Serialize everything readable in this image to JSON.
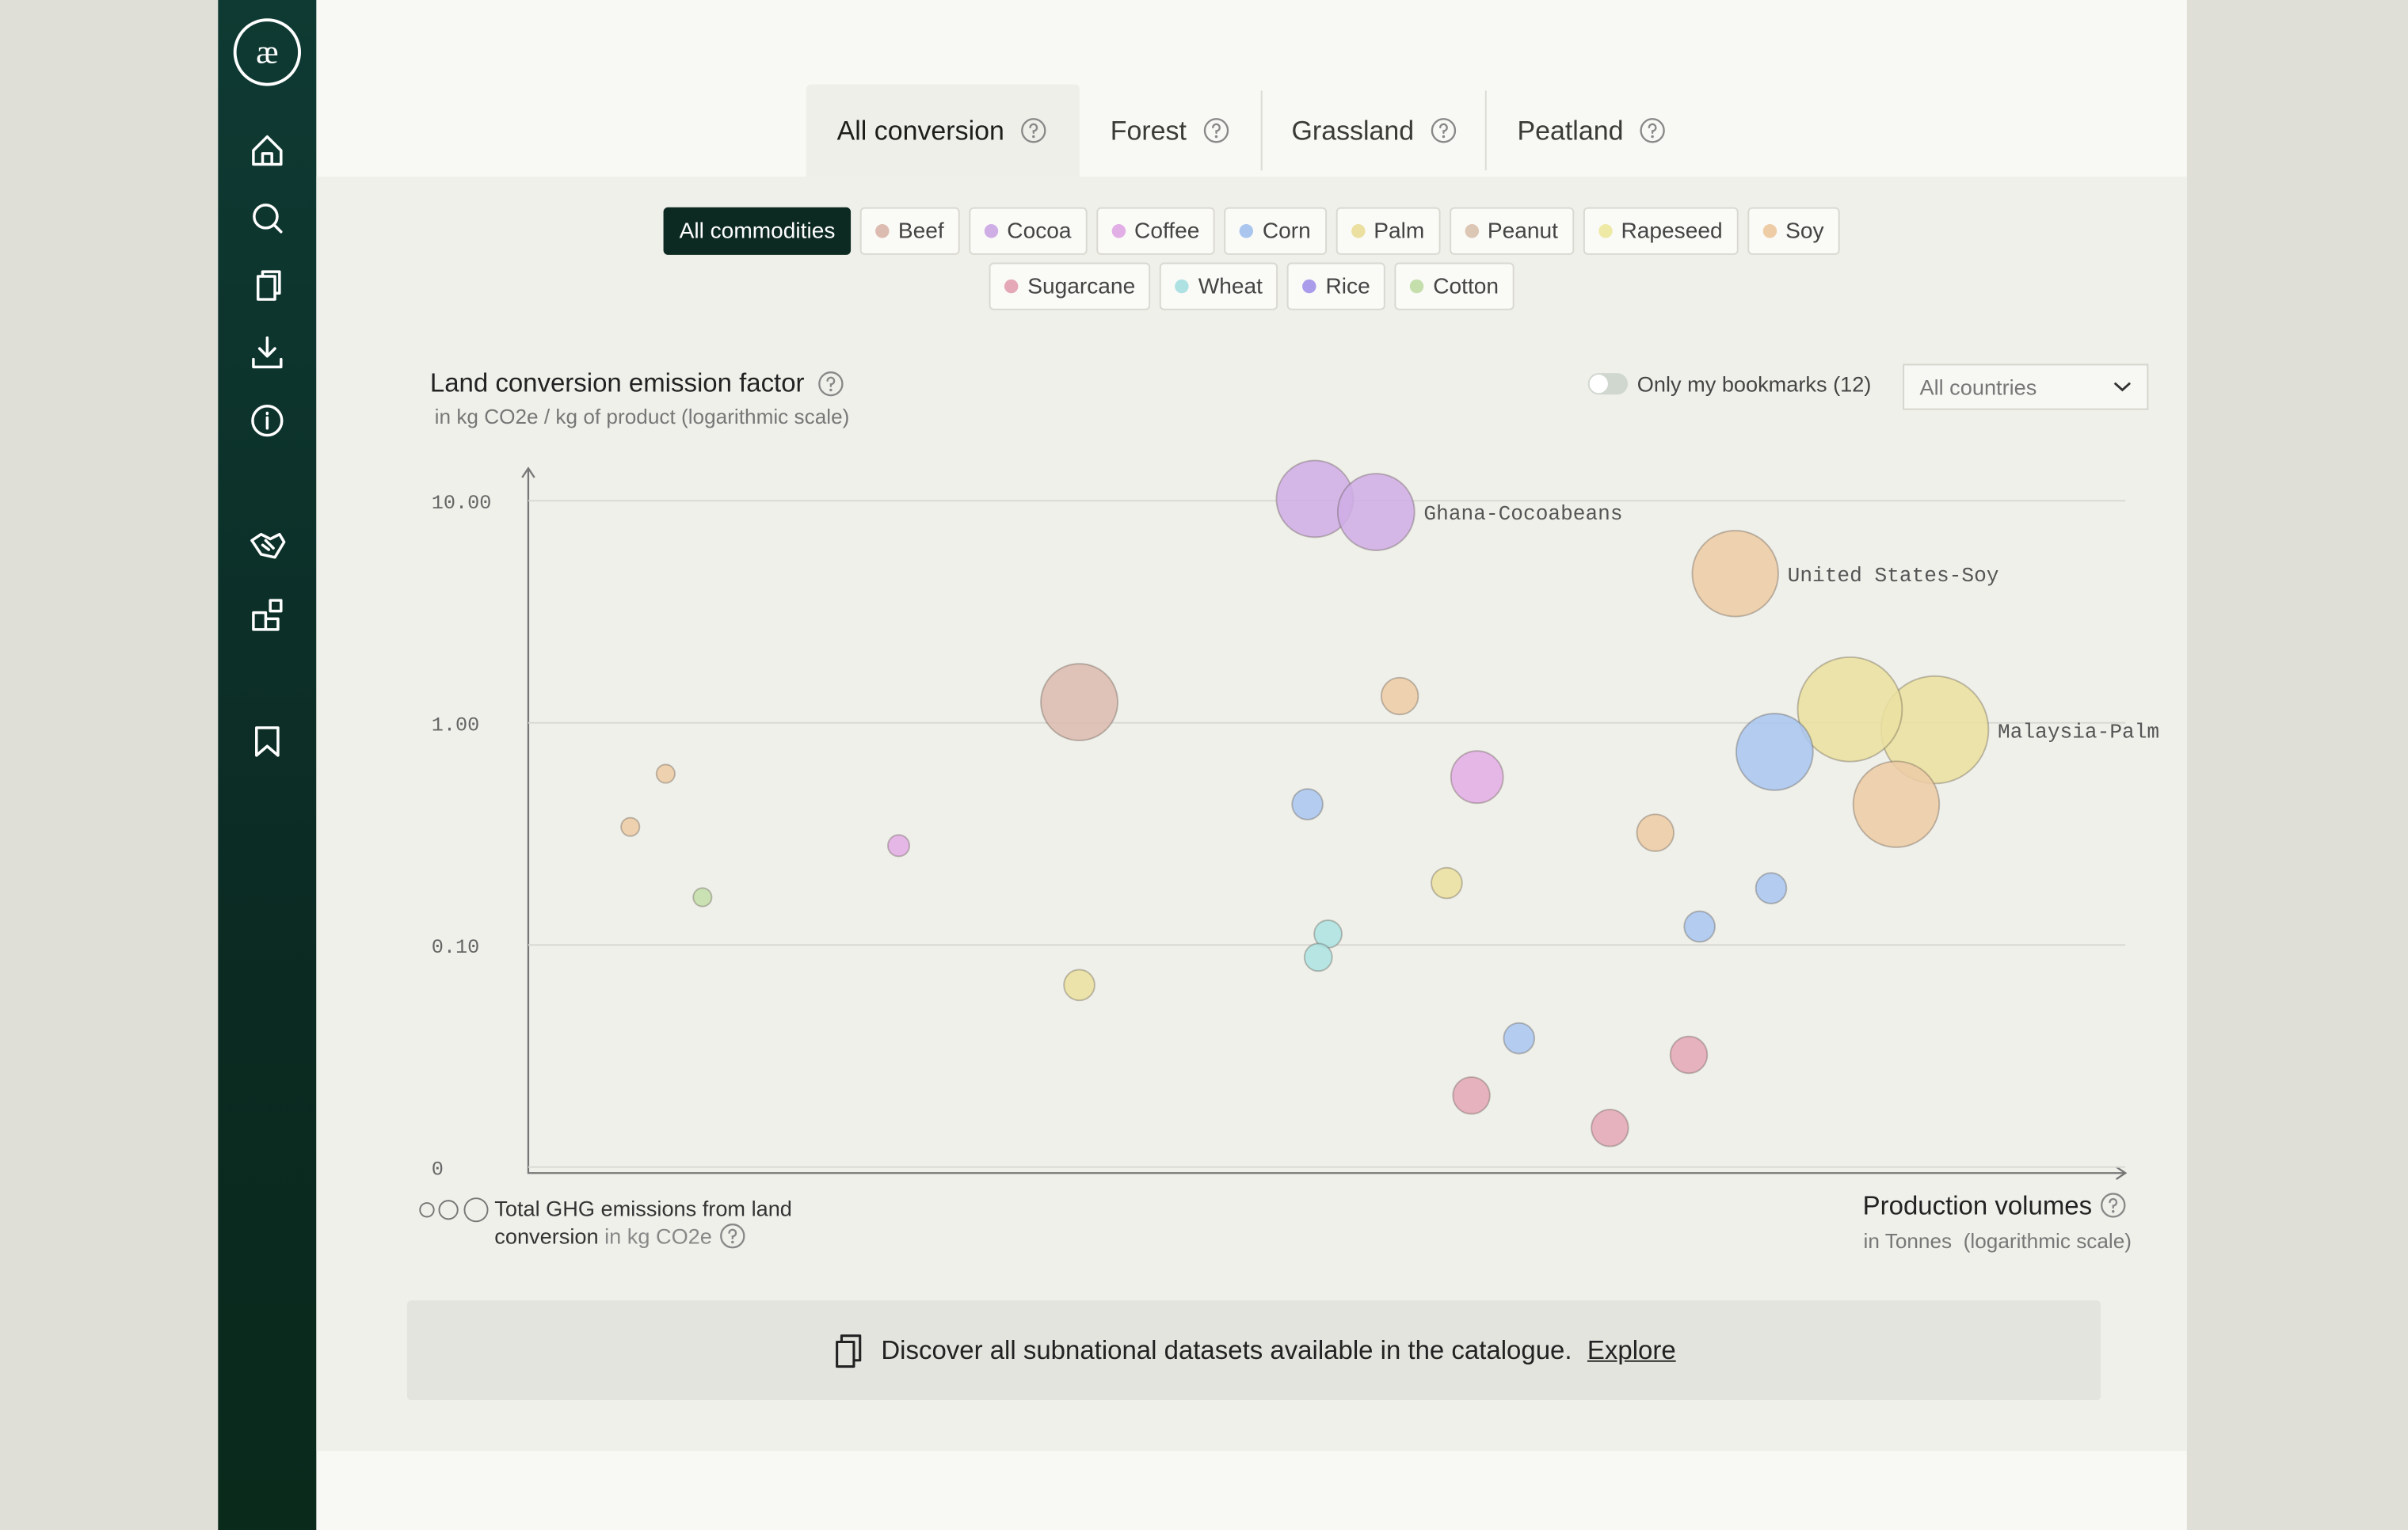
{
  "logo": "æ",
  "tabs": [
    "All conversion",
    "Forest",
    "Grassland",
    "Peatland"
  ],
  "filters": {
    "all": "All commodities",
    "bookmarks": "Only my bookmarks (12)",
    "country": "All countries"
  },
  "chart_data": {
    "type": "scatter",
    "title": "Land conversion emission factor",
    "subtitle": "in kg CO2e / kg of product (logarithmic scale)",
    "x_label": "Production volumes",
    "x_sublabel": "in Tonnes  (logarithmic scale)",
    "size_label": "Total GHG emissions from land conversion",
    "size_unit": "in kg CO2e",
    "xscale": "log",
    "yscale": "log",
    "grid": true,
    "xlim": [
      100,
      1000000000
    ],
    "ylim": [
      0.0094,
      14
    ],
    "yticks": [
      {
        "value": 10,
        "label": "10.00"
      },
      {
        "value": 1,
        "label": "1.00"
      },
      {
        "value": 0.1,
        "label": "0.10"
      },
      {
        "value": 0.01,
        "label": "0"
      }
    ],
    "series": [
      {
        "name": "Beef",
        "color": "#dcbcb0",
        "x": [
          26000
        ],
        "values": [
          1.24
        ],
        "sizes": [
          625000000
        ],
        "point_labels": [
          null
        ]
      },
      {
        "name": "Cocoa",
        "color": "#cfaee6",
        "x": [
          280000,
          520000
        ],
        "values": [
          10.2,
          8.9
        ],
        "sizes": [
          625000000,
          625000000
        ],
        "point_labels": [
          null,
          "Ghana-Cocoabeans"
        ]
      },
      {
        "name": "Coffee",
        "color": "#e2aee6",
        "x": [
          1440000,
          4200
        ],
        "values": [
          0.57,
          0.28
        ],
        "sizes": [
          289000000,
          49000000
        ],
        "point_labels": [
          null,
          null
        ]
      },
      {
        "name": "Corn",
        "color": "#aac6ef",
        "x": [
          29000000,
          260000,
          28000000,
          13600000,
          2200000
        ],
        "values": [
          0.74,
          0.43,
          0.18,
          0.121,
          0.038
        ],
        "sizes": [
          625000000,
          100000000,
          100000000,
          100000000,
          100000000
        ],
        "point_labels": [
          null,
          null,
          null,
          null,
          null
        ]
      },
      {
        "name": "Palm",
        "color": "#ebe0a0",
        "x": [
          62000000,
          146000000,
          1060000,
          26000
        ],
        "values": [
          1.15,
          0.93,
          0.19,
          0.066
        ],
        "sizes": [
          1156000000,
          1225000000,
          100000000,
          100000000
        ],
        "point_labels": [
          null,
          "Malaysia-Palm",
          null,
          null
        ]
      },
      {
        "name": "Peanut",
        "color": "#dcc6b4",
        "x": [],
        "values": [],
        "sizes": [],
        "point_labels": []
      },
      {
        "name": "Rapeseed",
        "color": "#eeeaa6",
        "x": [],
        "values": [],
        "sizes": [],
        "point_labels": []
      },
      {
        "name": "Soy",
        "color": "#edcca6",
        "x": [
          19500000,
          99000000,
          660000,
          400,
          280,
          8700000
        ],
        "values": [
          4.7,
          0.43,
          1.32,
          0.59,
          0.34,
          0.32
        ],
        "sizes": [
          784000000,
          784000000,
          144000000,
          36000000,
          36000000,
          144000000
        ],
        "point_labels": [
          "United States-Soy",
          null,
          null,
          null,
          null,
          null
        ]
      },
      {
        "name": "Sugarcane",
        "color": "#e4a8b6",
        "x": [
          12200000,
          1360000,
          5500000
        ],
        "values": [
          0.032,
          0.021,
          0.015
        ],
        "sizes": [
          144000000,
          144000000,
          144000000
        ],
        "point_labels": [
          null,
          null,
          null
        ]
      },
      {
        "name": "Wheat",
        "color": "#aee2e2",
        "x": [
          320000,
          290000
        ],
        "values": [
          0.112,
          0.088
        ],
        "sizes": [
          81000000,
          81000000
        ],
        "point_labels": [
          null,
          null
        ]
      },
      {
        "name": "Rice",
        "color": "#ab9ceb",
        "x": [],
        "values": [],
        "sizes": [],
        "point_labels": []
      },
      {
        "name": "Cotton",
        "color": "#c4deac",
        "x": [
          580
        ],
        "values": [
          0.164
        ],
        "sizes": [
          36000000
        ],
        "point_labels": [
          null
        ]
      }
    ]
  },
  "banner": {
    "text": "Discover all subnational datasets available in the catalogue.",
    "link": "Explore"
  }
}
